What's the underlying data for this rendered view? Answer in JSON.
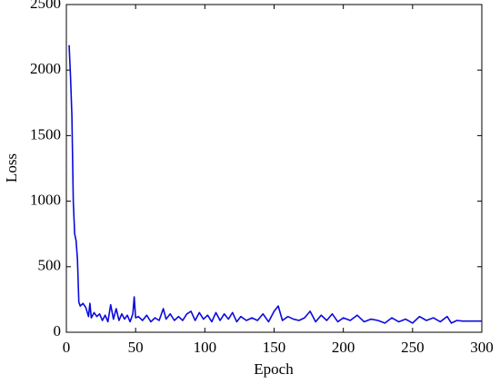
{
  "chart_data": {
    "type": "line",
    "xlabel": "Epoch",
    "ylabel": "Loss",
    "x": [
      2,
      3,
      4,
      5,
      6,
      7,
      8,
      9,
      10,
      12,
      14,
      16,
      17,
      18,
      20,
      22,
      24,
      26,
      28,
      30,
      32,
      34,
      36,
      38,
      40,
      42,
      44,
      46,
      48,
      49,
      50,
      52,
      55,
      58,
      61,
      64,
      67,
      70,
      72,
      75,
      78,
      81,
      84,
      87,
      90,
      93,
      96,
      99,
      102,
      105,
      108,
      111,
      114,
      117,
      120,
      123,
      126,
      130,
      134,
      138,
      142,
      146,
      150,
      153,
      156,
      160,
      164,
      168,
      172,
      176,
      180,
      184,
      188,
      192,
      196,
      200,
      205,
      210,
      215,
      220,
      225,
      230,
      235,
      240,
      245,
      250,
      255,
      260,
      265,
      270,
      275,
      278,
      282,
      286,
      290,
      295,
      300
    ],
    "series": [
      {
        "color": "#0a0adc",
        "values": [
          2190,
          1950,
          1650,
          1000,
          750,
          700,
          560,
          230,
          200,
          220,
          190,
          120,
          220,
          110,
          150,
          120,
          140,
          90,
          130,
          80,
          210,
          100,
          180,
          90,
          140,
          100,
          130,
          80,
          140,
          270,
          110,
          120,
          90,
          130,
          80,
          110,
          90,
          180,
          100,
          140,
          90,
          120,
          90,
          140,
          160,
          90,
          150,
          100,
          130,
          80,
          150,
          90,
          140,
          100,
          150,
          80,
          120,
          90,
          110,
          90,
          140,
          80,
          160,
          200,
          90,
          120,
          100,
          90,
          110,
          160,
          80,
          130,
          90,
          140,
          80,
          110,
          90,
          130,
          80,
          100,
          90,
          70,
          110,
          80,
          100,
          70,
          120,
          90,
          110,
          80,
          120,
          70,
          90,
          85,
          85,
          85,
          85
        ]
      }
    ],
    "xlim": [
      0,
      300
    ],
    "xticks": [
      0,
      50,
      100,
      150,
      200,
      250,
      300
    ],
    "ylim": [
      0,
      2500
    ],
    "yticks": [
      0,
      500,
      1000,
      1500,
      2000,
      2500
    ]
  }
}
